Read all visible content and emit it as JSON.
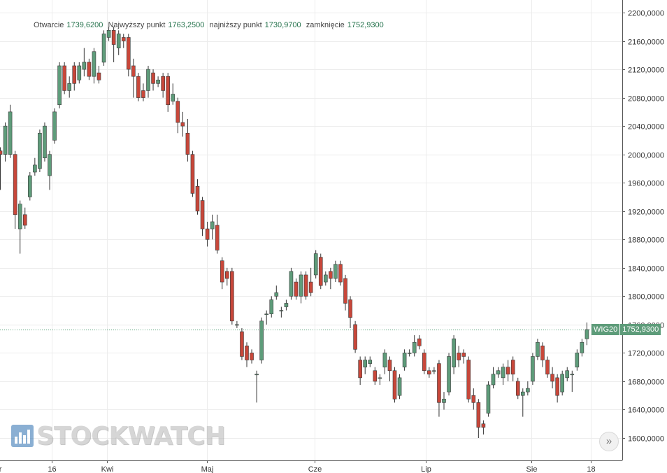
{
  "ohlc_header": {
    "open_label": "Otwarcie",
    "open_value": "1739,6200",
    "high_label": "Najwyższy punkt",
    "high_value": "1763,2500",
    "low_label": "najniższy punkt",
    "low_value": "1730,9700",
    "close_label": "zamknięcie",
    "close_value": "1752,9300"
  },
  "logo_text": "STOCKWATCH",
  "scroll_button_glyph": "»",
  "price_tag": {
    "symbol": "WIG20",
    "value": "1752,9300"
  },
  "colors": {
    "up": "#5e9c7a",
    "down": "#c8473a",
    "wick": "#333333",
    "grid": "#ececec",
    "last_line": "#4b9a6f"
  },
  "chart_data": {
    "type": "candlestick",
    "symbol": "WIG20",
    "ylim": [
      1575,
      2215
    ],
    "y_ticks": [
      "1600,0000",
      "1640,0000",
      "1680,0000",
      "1720,0000",
      "1760,0000",
      "1800,0000",
      "1840,0000",
      "1880,0000",
      "1920,0000",
      "1960,0000",
      "2000,0000",
      "2040,0000",
      "2080,0000",
      "2120,0000",
      "2160,0000",
      "2200,0000"
    ],
    "x_labels": [
      {
        "label": "ar",
        "bar": -0.5
      },
      {
        "label": "16",
        "bar": 10.4
      },
      {
        "label": "Kwi",
        "bar": 21.6
      },
      {
        "label": "Maj",
        "bar": 41.9
      },
      {
        "label": "Cze",
        "bar": 63.8
      },
      {
        "label": "Lip",
        "bar": 86.3
      },
      {
        "label": "Sie",
        "bar": 107.7
      },
      {
        "label": "18",
        "bar": 119.8
      }
    ],
    "last_close": 1752.93,
    "candles": [
      [
        2005,
        2000,
        2010,
        1950
      ],
      [
        2000,
        2040,
        2045,
        1990
      ],
      [
        2000,
        2060,
        2070,
        1995
      ],
      [
        2000,
        1915,
        2005,
        1895
      ],
      [
        1895,
        1930,
        1935,
        1860
      ],
      [
        1915,
        1900,
        1925,
        1895
      ],
      [
        1940,
        1970,
        1975,
        1935
      ],
      [
        1975,
        1985,
        1995,
        1970
      ],
      [
        1980,
        2030,
        2035,
        1975
      ],
      [
        1995,
        2040,
        2045,
        1990
      ],
      [
        1970,
        2000,
        2005,
        1950
      ],
      [
        2020,
        2060,
        2065,
        2015
      ],
      [
        2070,
        2125,
        2130,
        2065
      ],
      [
        2125,
        2090,
        2130,
        2085
      ],
      [
        2090,
        2100,
        2110,
        2080
      ],
      [
        2125,
        2100,
        2130,
        2090
      ],
      [
        2105,
        2125,
        2130,
        2100
      ],
      [
        2120,
        2130,
        2150,
        2110
      ],
      [
        2130,
        2110,
        2135,
        2105
      ],
      [
        2110,
        2145,
        2150,
        2100
      ],
      [
        2115,
        2105,
        2125,
        2100
      ],
      [
        2130,
        2170,
        2175,
        2125
      ],
      [
        2165,
        2175,
        2180,
        2160
      ],
      [
        2175,
        2155,
        2180,
        2130
      ],
      [
        2150,
        2170,
        2175,
        2140
      ],
      [
        2165,
        2160,
        2170,
        2150
      ],
      [
        2165,
        2120,
        2170,
        2110
      ],
      [
        2125,
        2110,
        2135,
        2080
      ],
      [
        2110,
        2080,
        2115,
        2075
      ],
      [
        2090,
        2080,
        2100,
        2075
      ],
      [
        2090,
        2120,
        2125,
        2080
      ],
      [
        2115,
        2100,
        2120,
        2090
      ],
      [
        2100,
        2105,
        2110,
        2095
      ],
      [
        2110,
        2090,
        2115,
        2080
      ],
      [
        2110,
        2070,
        2115,
        2060
      ],
      [
        2075,
        2085,
        2100,
        2070
      ],
      [
        2075,
        2045,
        2080,
        2030
      ],
      [
        2045,
        2040,
        2060,
        2025
      ],
      [
        2030,
        2000,
        2050,
        1990
      ],
      [
        2000,
        1945,
        2005,
        1940
      ],
      [
        1955,
        1920,
        1965,
        1915
      ],
      [
        1935,
        1895,
        1940,
        1885
      ],
      [
        1895,
        1880,
        1905,
        1870
      ],
      [
        1895,
        1905,
        1915,
        1880
      ],
      [
        1900,
        1865,
        1915,
        1860
      ],
      [
        1850,
        1820,
        1855,
        1810
      ],
      [
        1835,
        1825,
        1840,
        1815
      ],
      [
        1835,
        1765,
        1840,
        1760
      ],
      [
        1760,
        1760,
        1765,
        1755
      ],
      [
        1750,
        1715,
        1755,
        1710
      ],
      [
        1730,
        1710,
        1735,
        1700
      ],
      [
        1720,
        1710,
        1725,
        1705
      ],
      [
        1690,
        1690,
        1695,
        1650
      ],
      [
        1710,
        1765,
        1770,
        1705
      ],
      [
        1775,
        1775,
        1780,
        1760
      ],
      [
        1775,
        1795,
        1800,
        1770
      ],
      [
        1800,
        1805,
        1815,
        1795
      ],
      [
        1780,
        1780,
        1785,
        1770
      ],
      [
        1785,
        1790,
        1795,
        1780
      ],
      [
        1800,
        1835,
        1840,
        1795
      ],
      [
        1820,
        1800,
        1825,
        1795
      ],
      [
        1800,
        1830,
        1835,
        1790
      ],
      [
        1830,
        1800,
        1835,
        1795
      ],
      [
        1820,
        1805,
        1840,
        1800
      ],
      [
        1830,
        1860,
        1865,
        1825
      ],
      [
        1855,
        1815,
        1860,
        1810
      ],
      [
        1820,
        1830,
        1835,
        1815
      ],
      [
        1835,
        1825,
        1840,
        1810
      ],
      [
        1825,
        1845,
        1850,
        1820
      ],
      [
        1845,
        1820,
        1850,
        1815
      ],
      [
        1825,
        1790,
        1830,
        1780
      ],
      [
        1795,
        1770,
        1800,
        1755
      ],
      [
        1760,
        1725,
        1765,
        1720
      ],
      [
        1710,
        1685,
        1715,
        1675
      ],
      [
        1700,
        1710,
        1715,
        1690
      ],
      [
        1705,
        1710,
        1715,
        1700
      ],
      [
        1695,
        1680,
        1700,
        1675
      ],
      [
        1685,
        1685,
        1690,
        1675
      ],
      [
        1700,
        1720,
        1725,
        1690
      ],
      [
        1710,
        1695,
        1715,
        1680
      ],
      [
        1695,
        1655,
        1700,
        1650
      ],
      [
        1660,
        1685,
        1690,
        1655
      ],
      [
        1700,
        1720,
        1725,
        1695
      ],
      [
        1720,
        1720,
        1725,
        1715
      ],
      [
        1720,
        1735,
        1745,
        1715
      ],
      [
        1740,
        1730,
        1745,
        1725
      ],
      [
        1720,
        1695,
        1725,
        1690
      ],
      [
        1695,
        1690,
        1700,
        1685
      ],
      [
        1695,
        1695,
        1700,
        1690
      ],
      [
        1705,
        1650,
        1710,
        1630
      ],
      [
        1650,
        1655,
        1665,
        1640
      ],
      [
        1665,
        1715,
        1720,
        1660
      ],
      [
        1700,
        1740,
        1745,
        1690
      ],
      [
        1720,
        1710,
        1730,
        1700
      ],
      [
        1720,
        1715,
        1725,
        1705
      ],
      [
        1710,
        1655,
        1715,
        1650
      ],
      [
        1660,
        1650,
        1670,
        1640
      ],
      [
        1650,
        1615,
        1655,
        1600
      ],
      [
        1620,
        1615,
        1625,
        1605
      ],
      [
        1635,
        1675,
        1680,
        1630
      ],
      [
        1675,
        1690,
        1700,
        1670
      ],
      [
        1690,
        1695,
        1700,
        1685
      ],
      [
        1685,
        1700,
        1705,
        1675
      ],
      [
        1700,
        1690,
        1710,
        1680
      ],
      [
        1710,
        1690,
        1715,
        1680
      ],
      [
        1680,
        1660,
        1685,
        1655
      ],
      [
        1660,
        1665,
        1670,
        1630
      ],
      [
        1665,
        1670,
        1680,
        1660
      ],
      [
        1680,
        1715,
        1720,
        1675
      ],
      [
        1715,
        1735,
        1740,
        1710
      ],
      [
        1730,
        1710,
        1735,
        1700
      ],
      [
        1710,
        1690,
        1715,
        1685
      ],
      [
        1690,
        1680,
        1700,
        1670
      ],
      [
        1685,
        1660,
        1690,
        1650
      ],
      [
        1665,
        1690,
        1695,
        1660
      ],
      [
        1685,
        1695,
        1700,
        1680
      ],
      [
        1690,
        1690,
        1695,
        1665
      ],
      [
        1700,
        1720,
        1725,
        1695
      ],
      [
        1720,
        1735,
        1740,
        1715
      ],
      [
        1740,
        1753,
        1763,
        1731
      ]
    ]
  }
}
